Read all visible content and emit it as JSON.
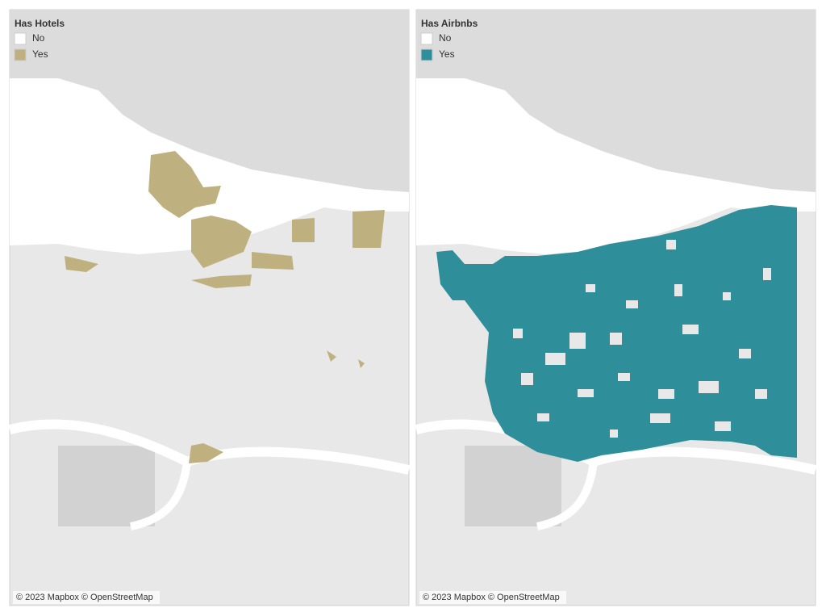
{
  "panels": [
    {
      "legend": {
        "title": "Has Hotels",
        "items": [
          {
            "label": "No",
            "color": "#ffffff"
          },
          {
            "label": "Yes",
            "color": "#bfb17f"
          }
        ]
      },
      "attribution": "© 2023 Mapbox © OpenStreetMap"
    },
    {
      "legend": {
        "title": "Has Airbnbs",
        "items": [
          {
            "label": "No",
            "color": "#ffffff"
          },
          {
            "label": "Yes",
            "color": "#2e8f9a"
          }
        ]
      },
      "attribution": "© 2023 Mapbox © OpenStreetMap"
    }
  ]
}
